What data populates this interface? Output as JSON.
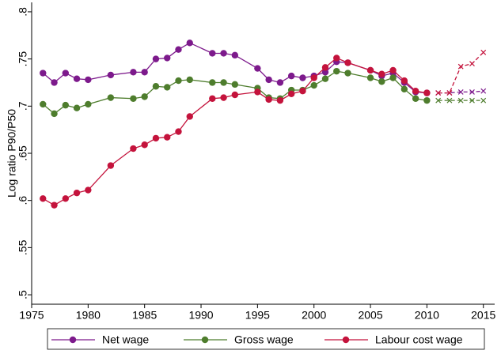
{
  "chart_data": {
    "type": "line",
    "y_label": "Log ratio P90/P50",
    "x": [
      1976,
      1977,
      1978,
      1979,
      1980,
      1982,
      1984,
      1985,
      1986,
      1987,
      1988,
      1989,
      1991,
      1992,
      1993,
      1995,
      1996,
      1997,
      1998,
      1999,
      2000,
      2001,
      2002,
      2003,
      2005,
      2006,
      2007,
      2008,
      2009,
      2010,
      2011,
      2012,
      2013,
      2014,
      2015
    ],
    "projection_start": 2011,
    "series": [
      {
        "name": "Net wage",
        "color": "#7d1a8c",
        "values": [
          0.735,
          0.725,
          0.735,
          0.729,
          0.728,
          0.733,
          0.736,
          0.736,
          0.75,
          0.751,
          0.76,
          0.767,
          0.756,
          0.756,
          0.754,
          0.74,
          0.728,
          0.725,
          0.732,
          0.73,
          0.732,
          0.736,
          0.747,
          0.746,
          0.738,
          0.732,
          0.735,
          0.725,
          0.715,
          0.714,
          0.714,
          0.714,
          0.715,
          0.715,
          0.716
        ]
      },
      {
        "name": "Gross wage",
        "color": "#4e7d2d",
        "values": [
          0.702,
          0.692,
          0.701,
          0.698,
          0.702,
          0.709,
          0.708,
          0.71,
          0.721,
          0.72,
          0.727,
          0.728,
          0.725,
          0.725,
          0.723,
          0.719,
          0.709,
          0.708,
          0.717,
          0.717,
          0.722,
          0.729,
          0.737,
          0.735,
          0.73,
          0.726,
          0.73,
          0.718,
          0.708,
          0.706,
          0.706,
          0.706,
          0.706,
          0.706,
          0.706
        ]
      },
      {
        "name": "Labour cost wage",
        "color": "#c4133c",
        "values": [
          0.602,
          0.595,
          0.602,
          0.608,
          0.611,
          0.637,
          0.655,
          0.659,
          0.666,
          0.667,
          0.673,
          0.689,
          0.708,
          0.709,
          0.712,
          0.715,
          0.707,
          0.706,
          0.713,
          0.716,
          0.73,
          0.741,
          0.751,
          0.746,
          0.738,
          0.734,
          0.738,
          0.727,
          0.716,
          0.714,
          0.714,
          0.714,
          0.742,
          0.745,
          0.757
        ]
      }
    ],
    "xlim": [
      1975,
      2016
    ],
    "xticks": [
      1975,
      1980,
      1985,
      1990,
      1995,
      2000,
      2005,
      2010,
      2015
    ],
    "ylim": [
      0.49,
      0.81
    ],
    "yticks": [
      {
        "value": 0.5,
        "label": ".5"
      },
      {
        "value": 0.55,
        "label": ".55"
      },
      {
        "value": 0.6,
        "label": ".6"
      },
      {
        "value": 0.65,
        "label": ".65"
      },
      {
        "value": 0.7,
        "label": ".7"
      },
      {
        "value": 0.75,
        "label": ".75"
      },
      {
        "value": 0.8,
        "label": ".8"
      }
    ],
    "grid": false,
    "legend": "bottom"
  }
}
